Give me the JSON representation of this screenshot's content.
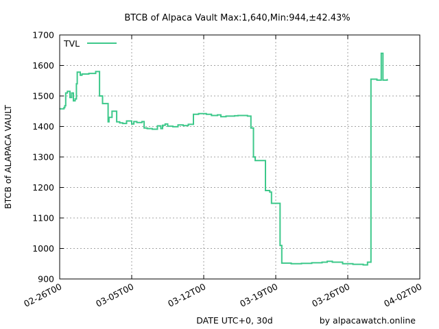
{
  "chart_data": {
    "type": "line",
    "title": "BTCB of Alpaca Vault Max:1,640,Min:944,±42.43%",
    "xlabel": "DATE UTC+0, 30d",
    "ylabel": "BTCB of ALAPACA VAULT",
    "credit": "by alpacawatch.online",
    "ylim": [
      900,
      1700
    ],
    "yticks": [
      "900",
      "1000",
      "1100",
      "1200",
      "1300",
      "1400",
      "1500",
      "1600",
      "1700"
    ],
    "xlim": [
      "2022-02-26",
      "2022-04-02"
    ],
    "xticks": [
      {
        "label": "02-26T00",
        "date": "2022-02-26"
      },
      {
        "label": "03-05T00",
        "date": "2022-03-05"
      },
      {
        "label": "03-12T00",
        "date": "2022-03-12"
      },
      {
        "label": "03-19T00",
        "date": "2022-03-19"
      },
      {
        "label": "03-26T00",
        "date": "2022-03-26"
      },
      {
        "label": "04-02T00",
        "date": "2022-04-02"
      }
    ],
    "grid": true,
    "legend_position": "top-left",
    "colors": {
      "series": "#3cc88a",
      "grid": "#a0a0a0"
    },
    "series": [
      {
        "name": "TVL",
        "points": [
          [
            "2022-02-26 00:00",
            1458
          ],
          [
            "2022-02-26 10:00",
            1462
          ],
          [
            "2022-02-26 12:00",
            1468
          ],
          [
            "2022-02-26 14:00",
            1510
          ],
          [
            "2022-02-26 18:00",
            1515
          ],
          [
            "2022-02-27 00:00",
            1495
          ],
          [
            "2022-02-27 04:00",
            1510
          ],
          [
            "2022-02-27 08:00",
            1484
          ],
          [
            "2022-02-27 12:00",
            1490
          ],
          [
            "2022-02-27 15:00",
            1540
          ],
          [
            "2022-02-27 17:00",
            1578
          ],
          [
            "2022-02-28 00:00",
            1568
          ],
          [
            "2022-02-28 04:00",
            1572
          ],
          [
            "2022-02-28 20:00",
            1574
          ],
          [
            "2022-03-01 12:00",
            1580
          ],
          [
            "2022-03-01 21:00",
            1500
          ],
          [
            "2022-03-02 04:00",
            1475
          ],
          [
            "2022-03-02 17:00",
            1415
          ],
          [
            "2022-03-02 19:00",
            1430
          ],
          [
            "2022-03-03 02:00",
            1450
          ],
          [
            "2022-03-03 13:00",
            1415
          ],
          [
            "2022-03-03 20:00",
            1412
          ],
          [
            "2022-03-04 03:00",
            1410
          ],
          [
            "2022-03-04 12:00",
            1418
          ],
          [
            "2022-03-05 00:00",
            1408
          ],
          [
            "2022-03-05 05:00",
            1416
          ],
          [
            "2022-03-05 12:00",
            1413
          ],
          [
            "2022-03-06 00:00",
            1416
          ],
          [
            "2022-03-06 05:00",
            1395
          ],
          [
            "2022-03-06 12:00",
            1393
          ],
          [
            "2022-03-07 00:00",
            1391
          ],
          [
            "2022-03-07 12:00",
            1402
          ],
          [
            "2022-03-07 20:00",
            1393
          ],
          [
            "2022-03-08 00:00",
            1404
          ],
          [
            "2022-03-08 06:00",
            1408
          ],
          [
            "2022-03-08 12:00",
            1401
          ],
          [
            "2022-03-09 00:00",
            1399
          ],
          [
            "2022-03-09 12:00",
            1405
          ],
          [
            "2022-03-10 00:00",
            1403
          ],
          [
            "2022-03-10 12:00",
            1407
          ],
          [
            "2022-03-11 00:00",
            1440
          ],
          [
            "2022-03-11 12:00",
            1442
          ],
          [
            "2022-03-12 06:00",
            1440
          ],
          [
            "2022-03-12 18:00",
            1436
          ],
          [
            "2022-03-13 08:00",
            1438
          ],
          [
            "2022-03-13 16:00",
            1432
          ],
          [
            "2022-03-14 04:00",
            1434
          ],
          [
            "2022-03-15 00:00",
            1435
          ],
          [
            "2022-03-15 08:00",
            1436
          ],
          [
            "2022-03-16 06:00",
            1434
          ],
          [
            "2022-03-16 14:00",
            1395
          ],
          [
            "2022-03-16 20:00",
            1300
          ],
          [
            "2022-03-17 00:00",
            1288
          ],
          [
            "2022-03-18 00:00",
            1190
          ],
          [
            "2022-03-18 10:00",
            1185
          ],
          [
            "2022-03-18 14:00",
            1148
          ],
          [
            "2022-03-19 10:00",
            1010
          ],
          [
            "2022-03-19 14:00",
            952
          ],
          [
            "2022-03-20 12:00",
            950
          ],
          [
            "2022-03-21 12:00",
            951
          ],
          [
            "2022-03-22 12:00",
            953
          ],
          [
            "2022-03-23 12:00",
            955
          ],
          [
            "2022-03-24 00:00",
            958
          ],
          [
            "2022-03-24 12:00",
            955
          ],
          [
            "2022-03-25 12:00",
            950
          ],
          [
            "2022-03-26 12:00",
            948
          ],
          [
            "2022-03-27 12:00",
            946
          ],
          [
            "2022-03-27 22:00",
            955
          ],
          [
            "2022-03-28 06:00",
            1555
          ],
          [
            "2022-03-28 20:00",
            1552
          ],
          [
            "2022-03-29 06:00",
            1640
          ],
          [
            "2022-03-29 10:00",
            1552
          ],
          [
            "2022-03-29 20:00",
            1555
          ]
        ]
      }
    ]
  }
}
